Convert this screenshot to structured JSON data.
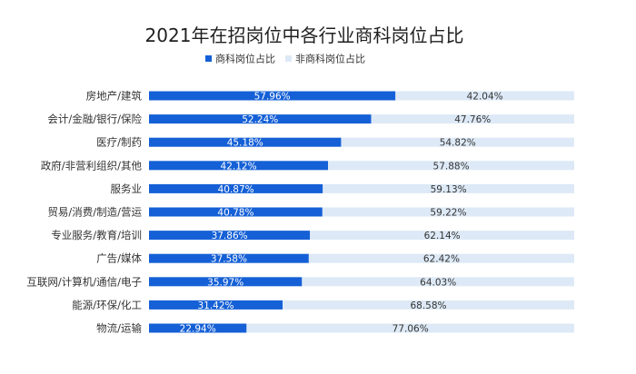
{
  "chart_data": {
    "type": "bar",
    "orientation": "horizontal",
    "stacked": true,
    "title": "2021年在招岗位中各行业商科岗位占比",
    "legend_placement": "top",
    "categories": [
      "房地产/建筑",
      "会计/金融/银行/保险",
      "医疗/制药",
      "政府/非营利组织/其他",
      "服务业",
      "贸易/消费/制造/营运",
      "专业服务/教育/培训",
      "广告/媒体",
      "互联网/计算机/通信/电子",
      "能源/环保/化工",
      "物流/运输"
    ],
    "series": [
      {
        "name": "商科岗位占比",
        "color": "#1560d6",
        "values": [
          57.96,
          52.24,
          45.18,
          42.12,
          40.87,
          40.78,
          37.86,
          37.58,
          35.97,
          31.42,
          22.94
        ],
        "labels": [
          "57.96%",
          "52.24%",
          "45.18%",
          "42.12%",
          "40.87%",
          "40.78%",
          "37.86%",
          "37.58%",
          "35.97%",
          "31.42%",
          "22.94%"
        ]
      },
      {
        "name": "非商科岗位占比",
        "color": "#dde9f6",
        "values": [
          42.04,
          47.76,
          54.82,
          57.88,
          59.13,
          59.22,
          62.14,
          62.42,
          64.03,
          68.58,
          77.06
        ],
        "labels": [
          "42.04%",
          "47.76%",
          "54.82%",
          "57.88%",
          "59.13%",
          "59.22%",
          "62.14%",
          "62.42%",
          "64.03%",
          "68.58%",
          "77.06%"
        ]
      }
    ],
    "xlim": [
      0,
      100
    ],
    "grid": false
  }
}
